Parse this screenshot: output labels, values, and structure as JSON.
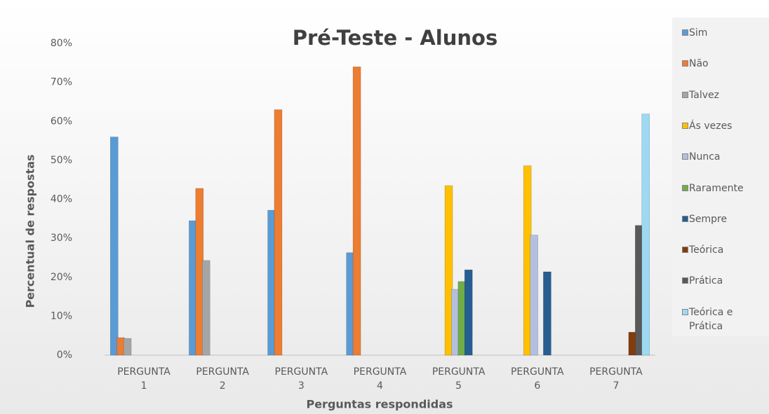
{
  "chart_data": {
    "type": "bar",
    "title": "Pré-Teste - Alunos",
    "x_label": "Perguntas respondidas",
    "y_label": "Percentual de respostas",
    "categories": [
      "PERGUNTA 1",
      "PERGUNTA 2",
      "PERGUNTA 3",
      "PERGUNTA 4",
      "PERGUNTA 5",
      "PERGUNTA 6",
      "PERGUNTA 7"
    ],
    "series": [
      {
        "name": "Sim",
        "color": "#5b9bd5",
        "values": [
          56,
          34.5,
          37.2,
          26.3,
          0,
          0,
          0
        ]
      },
      {
        "name": "Não",
        "color": "#ed7d31",
        "values": [
          4.5,
          42.8,
          63,
          74,
          0,
          0,
          0
        ]
      },
      {
        "name": "Talvez",
        "color": "#a5a5a5",
        "values": [
          4.3,
          24.3,
          0,
          0,
          0,
          0,
          0
        ]
      },
      {
        "name": "Ás vezes",
        "color": "#ffc000",
        "values": [
          0,
          0,
          0,
          0,
          43.5,
          48.6,
          0
        ]
      },
      {
        "name": "Nunca",
        "color": "#b4bfe0",
        "values": [
          0,
          0,
          0,
          0,
          16.9,
          30.8,
          0
        ]
      },
      {
        "name": "Raramente",
        "color": "#70ad47",
        "values": [
          0,
          0,
          0,
          0,
          18.9,
          0,
          0
        ]
      },
      {
        "name": "Sempre",
        "color": "#255e91",
        "values": [
          0,
          0,
          0,
          0,
          21.9,
          21.4,
          0
        ]
      },
      {
        "name": "Teórica",
        "color": "#843c0c",
        "values": [
          0,
          0,
          0,
          0,
          0,
          0,
          5.9
        ]
      },
      {
        "name": "Prática",
        "color": "#595959",
        "values": [
          0,
          0,
          0,
          0,
          0,
          0,
          33.3
        ]
      },
      {
        "name": "Teórica e Prática",
        "color": "#9dd9f3",
        "values": [
          0,
          0,
          0,
          0,
          0,
          0,
          61.9
        ]
      }
    ],
    "ylim": [
      0,
      80
    ],
    "yticks": [
      {
        "value": 0,
        "label": "0%"
      },
      {
        "value": 10,
        "label": "10%"
      },
      {
        "value": 20,
        "label": "20%"
      },
      {
        "value": 30,
        "label": "30%"
      },
      {
        "value": 40,
        "label": "40%"
      },
      {
        "value": 50,
        "label": "50%"
      },
      {
        "value": 60,
        "label": "60%"
      },
      {
        "value": 70,
        "label": "70%"
      },
      {
        "value": 80,
        "label": "80%"
      }
    ],
    "grid": false,
    "legend": "right"
  }
}
